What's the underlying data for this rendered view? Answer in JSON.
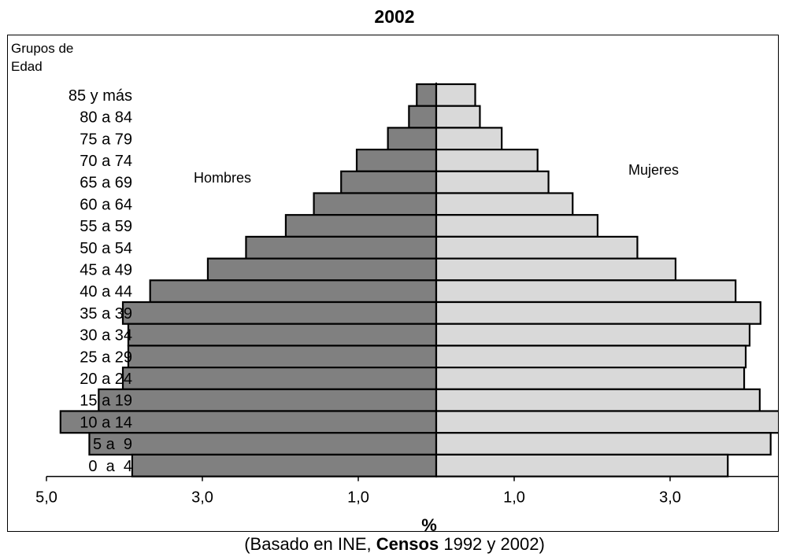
{
  "chart_data": {
    "type": "bar",
    "orientation": "horizontal-population-pyramid",
    "title": "2002",
    "y_axis_title": "Grupos de Edad",
    "y_axis_title_lines": [
      "Grupos de",
      "Edad"
    ],
    "xlabel": "%",
    "xlim": [
      -5,
      5
    ],
    "x_tick_labels": [
      "5,0",
      "3,0",
      "1,0",
      "1,0",
      "3,0",
      "5,0"
    ],
    "x_tick_values": [
      -5,
      -3,
      -1,
      1,
      3,
      5
    ],
    "categories": [
      "85 y más",
      "80 a 84",
      "75 a 79",
      "70 a 74",
      "65 a 69",
      "60 a 64",
      "55 a 59",
      "50 a 54",
      "45 a 49",
      "40 a 44",
      "35 a 39",
      "30 a 34",
      "25 a 29",
      "20 a 24",
      "15 a 19",
      "10 a 14",
      "5 a  9",
      "0  a  4"
    ],
    "series": [
      {
        "name": "Hombres",
        "color": "#808080",
        "values": [
          0.25,
          0.35,
          0.62,
          1.02,
          1.22,
          1.57,
          1.93,
          2.44,
          2.93,
          3.67,
          4.02,
          3.95,
          3.95,
          4.02,
          4.33,
          4.82,
          4.45,
          3.9
        ]
      },
      {
        "name": "Mujeres",
        "color": "#d9d9d9",
        "values": [
          0.5,
          0.56,
          0.84,
          1.3,
          1.44,
          1.75,
          2.07,
          2.58,
          3.07,
          3.84,
          4.16,
          4.02,
          3.97,
          3.95,
          4.15,
          4.62,
          4.29,
          3.74
        ]
      }
    ],
    "series_labels": {
      "left": "Hombres",
      "right": "Mujeres"
    },
    "grid": false,
    "legend": "none"
  },
  "source_prefix": "(Basado en INE, ",
  "source_bold": "Censos",
  "source_suffix": " 1992 y 2002)"
}
